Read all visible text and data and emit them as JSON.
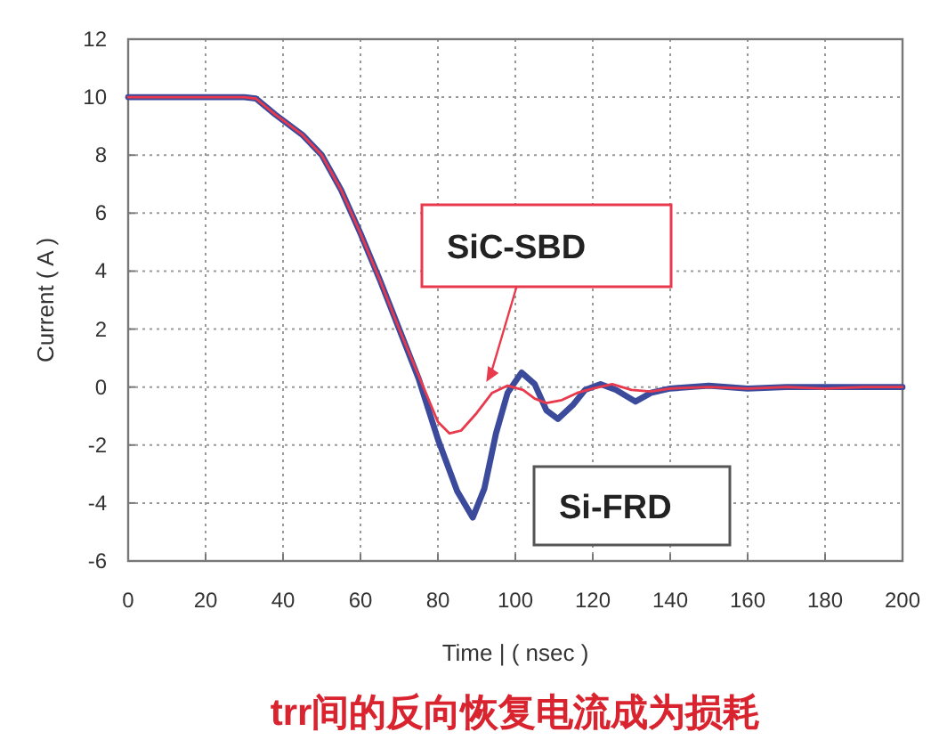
{
  "chart_data": {
    "type": "line",
    "xlabel": "Time | ( nsec )",
    "ylabel": "Current ( A )",
    "xlim": [
      0,
      200
    ],
    "ylim": [
      -6,
      12
    ],
    "xticks": [
      0,
      20,
      40,
      60,
      80,
      100,
      120,
      140,
      160,
      180,
      200
    ],
    "yticks": [
      -6,
      -4,
      -2,
      0,
      2,
      4,
      6,
      8,
      10,
      12
    ],
    "grid": true,
    "line_style": "solid",
    "marker": "none",
    "series": [
      {
        "name": "Si-FRD",
        "color": "#3c4a9c",
        "x": [
          0,
          10,
          20,
          30,
          33,
          38,
          45,
          50,
          55,
          60,
          65,
          70,
          75,
          80,
          85,
          89,
          92,
          95,
          98,
          101.6,
          105,
          108,
          111,
          115,
          118,
          122,
          126,
          131,
          135,
          140,
          150,
          160,
          170,
          180,
          190,
          200
        ],
        "values": [
          10,
          10,
          10,
          10,
          9.95,
          9.4,
          8.7,
          8.0,
          6.8,
          5.3,
          3.7,
          2.0,
          0.3,
          -1.8,
          -3.6,
          -4.5,
          -3.5,
          -1.6,
          -0.2,
          0.5,
          0.1,
          -0.8,
          -1.1,
          -0.6,
          -0.1,
          0.1,
          -0.1,
          -0.5,
          -0.2,
          -0.05,
          0.05,
          -0.05,
          0,
          0,
          0,
          0
        ]
      },
      {
        "name": "SiC-SBD",
        "color": "#e83a4c",
        "x": [
          0,
          10,
          20,
          30,
          33,
          38,
          45,
          50,
          55,
          60,
          65,
          70,
          75,
          80,
          83,
          86,
          90,
          94,
          98,
          102,
          105,
          108,
          112,
          116,
          120,
          125,
          130,
          135,
          140,
          150,
          160,
          170,
          180,
          190,
          200
        ],
        "values": [
          10,
          10,
          10,
          10,
          9.95,
          9.4,
          8.7,
          8.0,
          6.8,
          5.3,
          3.7,
          2.0,
          0.4,
          -1.2,
          -1.6,
          -1.5,
          -0.9,
          -0.2,
          0.05,
          -0.1,
          -0.4,
          -0.55,
          -0.45,
          -0.2,
          -0.05,
          0.1,
          -0.1,
          -0.15,
          -0.05,
          0,
          -0.05,
          0,
          -0.05,
          0,
          0
        ]
      }
    ],
    "annotations": [
      "trr间的反向恢复电流成为损耗"
    ]
  }
}
